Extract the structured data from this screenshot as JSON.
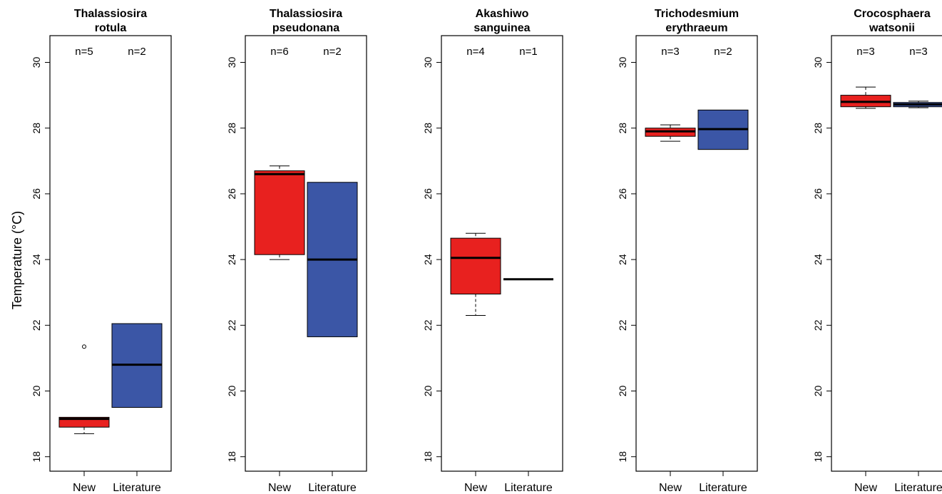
{
  "colors": {
    "new": "#e8211f",
    "literature": "#3b56a6",
    "axis": "#000000"
  },
  "chart_data": {
    "type": "boxplot",
    "ylabel": "Temperature (°C)",
    "ylim": [
      17.5,
      30.5
    ],
    "yticks": [
      "18",
      "20",
      "22",
      "24",
      "26",
      "28",
      "30"
    ],
    "ytick_values": [
      18,
      20,
      22,
      24,
      26,
      28,
      30
    ],
    "categories": [
      "New",
      "Literature"
    ],
    "panels": [
      {
        "title_line1": "Thalassiosira",
        "title_line2": "rotula",
        "boxes": [
          {
            "group": "New",
            "n_label": "n=5",
            "min": 18.7,
            "q1": 18.9,
            "median": 19.15,
            "q3": 19.2,
            "max": 19.2,
            "outliers": [
              21.35
            ]
          },
          {
            "group": "Literature",
            "n_label": "n=2",
            "min": 19.5,
            "q1": 19.5,
            "median": 20.8,
            "q3": 22.05,
            "max": 22.05,
            "outliers": []
          }
        ]
      },
      {
        "title_line1": "Thalassiosira",
        "title_line2": "pseudonana",
        "boxes": [
          {
            "group": "New",
            "n_label": "n=6",
            "min": 24.0,
            "q1": 24.15,
            "median": 26.6,
            "q3": 26.7,
            "max": 26.85,
            "outliers": []
          },
          {
            "group": "Literature",
            "n_label": "n=2",
            "min": 21.65,
            "q1": 21.65,
            "median": 24.0,
            "q3": 26.35,
            "max": 26.35,
            "outliers": []
          }
        ]
      },
      {
        "title_line1": "Akashiwo",
        "title_line2": "sanguinea",
        "boxes": [
          {
            "group": "New",
            "n_label": "n=4",
            "min": 22.3,
            "q1": 22.95,
            "median": 24.05,
            "q3": 24.65,
            "max": 24.8,
            "outliers": []
          },
          {
            "group": "Literature",
            "n_label": "n=1",
            "min": 23.4,
            "q1": 23.4,
            "median": 23.4,
            "q3": 23.4,
            "max": 23.4,
            "outliers": []
          }
        ]
      },
      {
        "title_line1": "Trichodesmium",
        "title_line2": "erythraeum",
        "boxes": [
          {
            "group": "New",
            "n_label": "n=3",
            "min": 27.6,
            "q1": 27.75,
            "median": 27.9,
            "q3": 28.0,
            "max": 28.1,
            "outliers": []
          },
          {
            "group": "Literature",
            "n_label": "n=2",
            "min": 27.35,
            "q1": 27.35,
            "median": 27.97,
            "q3": 28.55,
            "max": 28.55,
            "outliers": []
          }
        ]
      },
      {
        "title_line1": "Crocosphaera",
        "title_line2": "watsonii",
        "boxes": [
          {
            "group": "New",
            "n_label": "n=3",
            "min": 28.6,
            "q1": 28.65,
            "median": 28.8,
            "q3": 29.0,
            "max": 29.25,
            "outliers": []
          },
          {
            "group": "Literature",
            "n_label": "n=3",
            "min": 28.62,
            "q1": 28.65,
            "median": 28.72,
            "q3": 28.78,
            "max": 28.82,
            "outliers": []
          }
        ]
      }
    ]
  }
}
